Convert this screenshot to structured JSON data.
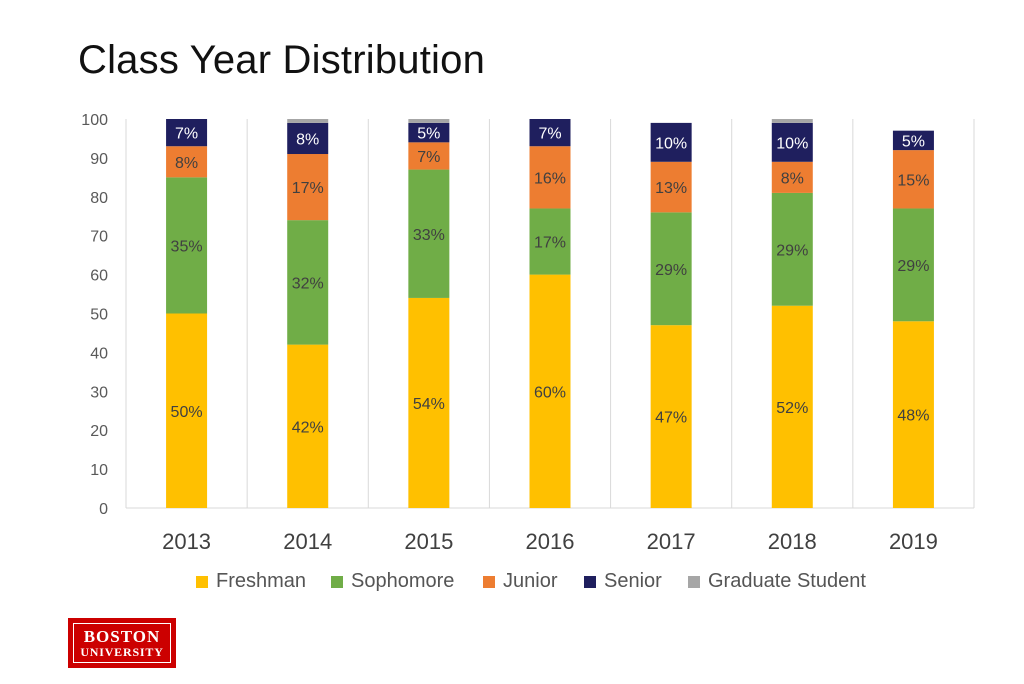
{
  "slide": {
    "title": "Class Year Distribution"
  },
  "logo": {
    "line1": "BOSTON",
    "line2": "UNIVERSITY",
    "color": "#cc0000"
  },
  "chart_data": {
    "type": "bar",
    "stacked": true,
    "title": "",
    "xlabel": "",
    "ylabel": "",
    "ylim": [
      0,
      100
    ],
    "yticks": [
      0,
      10,
      20,
      30,
      40,
      50,
      60,
      70,
      80,
      90,
      100
    ],
    "grid": "vertical separators",
    "legend_position": "bottom",
    "categories": [
      "2013",
      "2014",
      "2015",
      "2016",
      "2017",
      "2018",
      "2019"
    ],
    "series": [
      {
        "name": "Freshman",
        "color": "#ffc000",
        "values": [
          50,
          42,
          54,
          60,
          47,
          52,
          48
        ],
        "labels": [
          "50%",
          "42%",
          "54%",
          "60%",
          "47%",
          "52%",
          "48%"
        ]
      },
      {
        "name": "Sophomore",
        "color": "#70ad47",
        "values": [
          35,
          32,
          33,
          17,
          29,
          29,
          29
        ],
        "labels": [
          "35%",
          "32%",
          "33%",
          "17%",
          "29%",
          "29%",
          "29%"
        ]
      },
      {
        "name": "Junior",
        "color": "#ed7d31",
        "values": [
          8,
          17,
          7,
          16,
          13,
          8,
          15
        ],
        "labels": [
          "8%",
          "17%",
          "7%",
          "16%",
          "13%",
          "8%",
          "15%"
        ]
      },
      {
        "name": "Senior",
        "color": "#1f1f5e",
        "values": [
          7,
          8,
          5,
          7,
          10,
          10,
          5
        ],
        "labels": [
          "7%",
          "8%",
          "5%",
          "7%",
          "10%",
          "10%",
          "5%"
        ]
      },
      {
        "name": "Graduate Student",
        "color": "#a6a6a6",
        "values": [
          0,
          1,
          1,
          0,
          0,
          1,
          0
        ],
        "labels": [
          "",
          "",
          "",
          "",
          "",
          "",
          ""
        ]
      }
    ]
  }
}
